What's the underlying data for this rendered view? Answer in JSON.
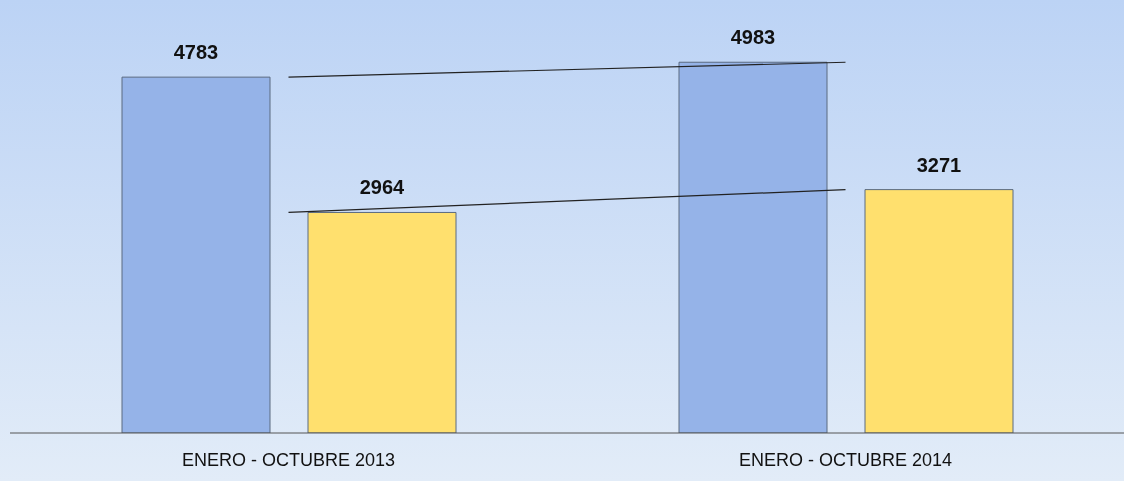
{
  "chart_data": {
    "type": "bar",
    "categories": [
      "ENERO - OCTUBRE 2013",
      "ENERO - OCTUBRE 2014"
    ],
    "series": [
      {
        "color": "#95b3e8",
        "values": [
          4783,
          4983
        ],
        "value_labels": [
          "4783",
          "4983"
        ]
      },
      {
        "color": "#ffe06e",
        "values": [
          2964,
          3271
        ],
        "value_labels": [
          "2964",
          "3271"
        ]
      },
      {
        "type": "line",
        "color": "#222222",
        "values": [
          4783,
          4983
        ]
      },
      {
        "type": "line",
        "color": "#222222",
        "values": [
          2964,
          3271
        ]
      }
    ],
    "marker": "none"
  }
}
